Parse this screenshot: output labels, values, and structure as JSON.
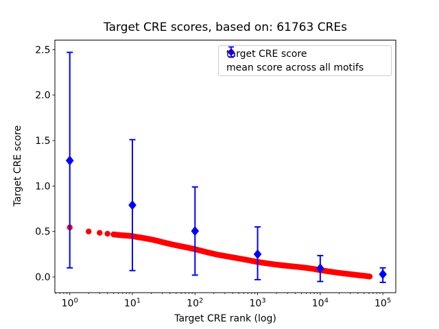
{
  "chart_data": {
    "type": "scatter",
    "title": "Target CRE scores, based on: 61763 CREs",
    "xlabel": "Target CRE rank (log)",
    "ylabel": "Target CRE score",
    "x_scale": "log",
    "xlim": [
      0.578,
      161000
    ],
    "ylim": [
      -0.173,
      2.605
    ],
    "x_major_tick_exponents": [
      0,
      1,
      2,
      3,
      4,
      5
    ],
    "y_ticks": [
      "0.0",
      "0.5",
      "1.0",
      "1.5",
      "2.0",
      "2.5"
    ],
    "grid": false,
    "colors": {
      "target_series": "#ff0000",
      "mean_series": "#0000ff",
      "axes": "#000000",
      "legend_border": "#cccccc"
    },
    "legend": {
      "position": "upper right",
      "entries": [
        {
          "label": "target CRE score",
          "marker": "circle",
          "color": "#ff0000"
        },
        {
          "label": "mean score across all motifs",
          "marker": "diamond-errorbar",
          "color": "#0000ff"
        }
      ]
    },
    "series": [
      {
        "name": "target CRE score",
        "type": "dense-scatter",
        "marker": "circle",
        "color": "#ff0000",
        "points": [
          [
            1,
            0.545
          ],
          [
            2,
            0.5
          ],
          [
            3,
            0.485
          ],
          [
            4,
            0.475
          ],
          [
            5,
            0.468
          ],
          [
            6,
            0.462
          ],
          [
            7,
            0.458
          ],
          [
            8,
            0.455
          ],
          [
            9,
            0.452
          ],
          [
            10,
            0.448
          ],
          [
            13,
            0.435
          ],
          [
            16,
            0.425
          ],
          [
            20,
            0.412
          ],
          [
            25,
            0.398
          ],
          [
            32,
            0.378
          ],
          [
            40,
            0.362
          ],
          [
            50,
            0.348
          ],
          [
            65,
            0.332
          ],
          [
            80,
            0.32
          ],
          [
            100,
            0.305
          ],
          [
            130,
            0.285
          ],
          [
            170,
            0.265
          ],
          [
            220,
            0.248
          ],
          [
            300,
            0.23
          ],
          [
            400,
            0.215
          ],
          [
            550,
            0.198
          ],
          [
            700,
            0.185
          ],
          [
            1000,
            0.165
          ],
          [
            1400,
            0.15
          ],
          [
            2000,
            0.135
          ],
          [
            3000,
            0.122
          ],
          [
            4500,
            0.11
          ],
          [
            6000,
            0.1
          ],
          [
            8000,
            0.087
          ],
          [
            10000,
            0.075
          ],
          [
            14000,
            0.06
          ],
          [
            20000,
            0.045
          ],
          [
            28000,
            0.033
          ],
          [
            40000,
            0.02
          ],
          [
            52000,
            0.012
          ],
          [
            61763,
            0.005
          ]
        ]
      },
      {
        "name": "mean score across all motifs",
        "type": "errorbar",
        "marker": "diamond",
        "color": "#0000ff",
        "points": [
          {
            "x": 1,
            "mean": 1.28,
            "lo": 0.1,
            "hi": 2.47
          },
          {
            "x": 10,
            "mean": 0.79,
            "lo": 0.07,
            "hi": 1.51
          },
          {
            "x": 100,
            "mean": 0.505,
            "lo": 0.02,
            "hi": 0.99
          },
          {
            "x": 1000,
            "mean": 0.25,
            "lo": -0.03,
            "hi": 0.55
          },
          {
            "x": 10000,
            "mean": 0.095,
            "lo": -0.05,
            "hi": 0.235
          },
          {
            "x": 100000,
            "mean": 0.03,
            "lo": -0.06,
            "hi": 0.1
          }
        ]
      }
    ]
  }
}
